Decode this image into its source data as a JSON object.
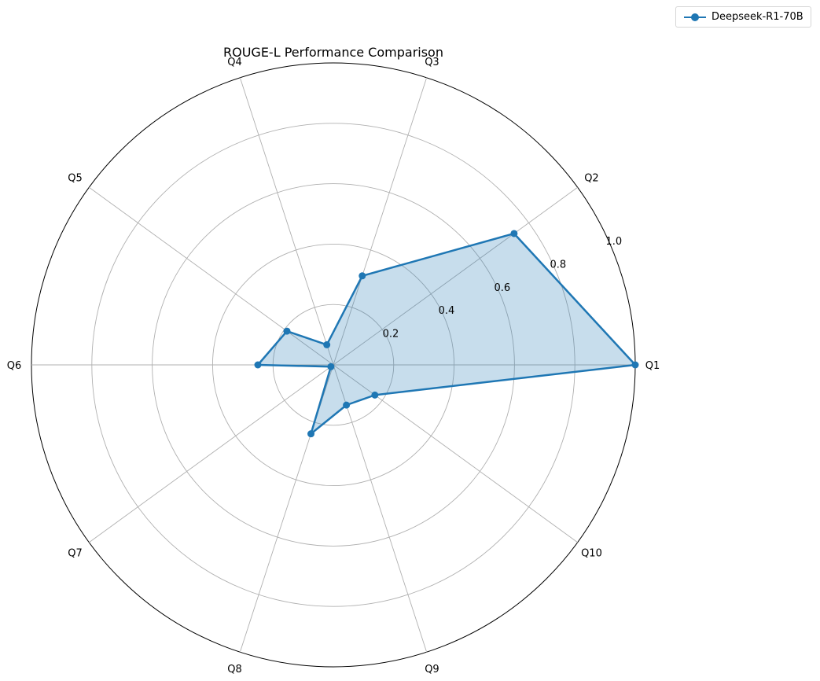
{
  "chart_data": {
    "type": "radar",
    "title": "ROUGE-L Performance Comparison",
    "categories": [
      "Q1",
      "Q2",
      "Q3",
      "Q4",
      "Q5",
      "Q6",
      "Q7",
      "Q8",
      "Q9",
      "Q10"
    ],
    "series": [
      {
        "name": "Deepseek-R1-70B",
        "values": [
          1.0,
          0.74,
          0.31,
          0.07,
          0.19,
          0.25,
          0.01,
          0.24,
          0.14,
          0.17
        ],
        "color": "#1f77b4"
      }
    ],
    "rlim": [
      0,
      1.0
    ],
    "rticks": [
      "0.2",
      "0.4",
      "0.6",
      "0.8",
      "1.0"
    ],
    "rtick_values": [
      0.2,
      0.4,
      0.6,
      0.8,
      1.0
    ],
    "grid": true,
    "legend_position": "top-right"
  },
  "legend": {
    "label": "Deepseek-R1-70B"
  }
}
